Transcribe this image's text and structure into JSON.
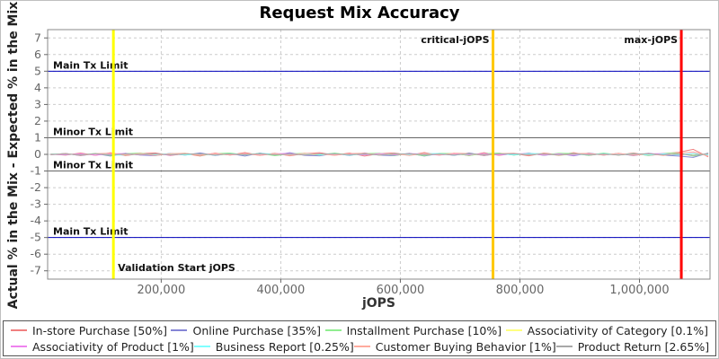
{
  "chart": {
    "title": "Request Mix Accuracy",
    "xlabel": "jOPS",
    "ylabel": "Actual % in the Mix - Expected % in the Mix"
  },
  "chart_data": {
    "type": "line",
    "title": "Request Mix Accuracy",
    "xlabel": "jOPS",
    "ylabel": "Actual % in the Mix - Expected % in the Mix",
    "xlim": [
      10000,
      1118000
    ],
    "ylim": [
      -7.5,
      7.5
    ],
    "x_ticks": [
      200000,
      400000,
      600000,
      800000,
      1000000
    ],
    "x_tick_labels": [
      "200,000",
      "400,000",
      "600,000",
      "800,000",
      "1,000,000"
    ],
    "y_ticks": [
      -7,
      -6,
      -5,
      -4,
      -3,
      -2,
      -1,
      0,
      1,
      2,
      3,
      4,
      5,
      6,
      7
    ],
    "grid": "dashed",
    "grid_color": "#cccccc",
    "legend_position": "bottom",
    "h_markers": [
      {
        "label": "Main Tx Limit",
        "y": 5,
        "color": "#0000bb"
      },
      {
        "label": "Minor Tx Limit",
        "y": 1,
        "color": "#666666"
      },
      {
        "label": "Minor Tx Limit",
        "y": -1,
        "color": "#666666"
      },
      {
        "label": "Main Tx Limit",
        "y": -5,
        "color": "#0000bb"
      }
    ],
    "v_markers": [
      {
        "label": "Validation Start jOPS",
        "x": 120000,
        "color": "#ffff00",
        "label_pos": "bottom-right"
      },
      {
        "label": "critical-jOPS",
        "x": 755000,
        "color": "#ffc800",
        "label_pos": "top-left"
      },
      {
        "label": "max-jOPS",
        "x": 1070000,
        "color": "#ff0000",
        "label_pos": "top-left"
      }
    ],
    "x": [
      15000,
      40000,
      65000,
      90000,
      115000,
      140000,
      165000,
      190000,
      215000,
      240000,
      265000,
      290000,
      315000,
      340000,
      365000,
      390000,
      415000,
      440000,
      465000,
      490000,
      515000,
      540000,
      565000,
      590000,
      615000,
      640000,
      665000,
      690000,
      715000,
      740000,
      765000,
      790000,
      815000,
      840000,
      865000,
      890000,
      915000,
      940000,
      965000,
      990000,
      1015000,
      1040000,
      1065000,
      1090000,
      1115000
    ],
    "series": [
      {
        "name": "In-store Purchase [50%]",
        "color": "#f08080",
        "values": [
          0.02,
          -0.05,
          0.08,
          -0.06,
          0.1,
          -0.08,
          0.05,
          0.09,
          -0.07,
          0.04,
          -0.1,
          0.08,
          -0.04,
          0.11,
          -0.06,
          0.07,
          -0.09,
          0.05,
          0.1,
          -0.05,
          0.08,
          -0.1,
          0.04,
          0.09,
          -0.06,
          0.11,
          -0.04,
          0.07,
          -0.08,
          0.1,
          -0.06,
          0.05,
          -0.09,
          0.08,
          -0.03,
          0.1,
          -0.07,
          0.06,
          -0.05,
          0.09,
          -0.08,
          0.04,
          0.12,
          0.3,
          -0.15
        ]
      },
      {
        "name": "Online Purchase [35%]",
        "color": "#8585d6",
        "values": [
          -0.03,
          0.06,
          -0.08,
          0.05,
          -0.1,
          0.07,
          -0.04,
          -0.08,
          0.06,
          -0.05,
          0.09,
          -0.07,
          0.05,
          -0.1,
          0.08,
          -0.05,
          0.1,
          -0.06,
          -0.09,
          0.06,
          -0.07,
          0.09,
          -0.05,
          -0.08,
          0.07,
          -0.1,
          0.05,
          -0.06,
          0.09,
          -0.08,
          0.07,
          -0.04,
          0.08,
          -0.06,
          0.05,
          -0.09,
          0.08,
          -0.05,
          0.06,
          -0.08,
          0.07,
          -0.05,
          -0.1,
          -0.18,
          0.08
        ]
      },
      {
        "name": "Installment Purchase [10%]",
        "color": "#90ee90",
        "values": [
          0.01,
          0.04,
          -0.05,
          0.06,
          -0.07,
          0.04,
          0.08,
          -0.05,
          0.03,
          0.07,
          -0.06,
          0.04,
          0.08,
          -0.04,
          0.06,
          -0.08,
          0.03,
          0.07,
          -0.05,
          0.08,
          -0.04,
          0.05,
          0.07,
          -0.06,
          0.04,
          -0.08,
          0.06,
          0.05,
          -0.07,
          0.04,
          0.08,
          -0.05,
          0.06,
          -0.04,
          0.07,
          0.05,
          -0.06,
          0.08,
          -0.04,
          0.05,
          -0.07,
          0.06,
          0.08,
          -0.1,
          0.05
        ]
      },
      {
        "name": "Associativity of Category [0.1%]",
        "color": "#ffff80",
        "values": [
          0.0,
          0.01,
          -0.01,
          0.02,
          -0.02,
          0.01,
          0.0,
          -0.01,
          0.02,
          -0.01,
          0.01,
          0.0,
          -0.02,
          0.01,
          0.02,
          -0.01,
          0.0,
          0.01,
          -0.02,
          0.02,
          -0.01,
          0.0,
          0.01,
          -0.01,
          0.02,
          0.0,
          -0.01,
          0.01,
          -0.02,
          0.01,
          0.0,
          0.02,
          -0.01,
          0.01,
          -0.02,
          0.0,
          0.01,
          -0.01,
          0.02,
          -0.01,
          0.0,
          0.01,
          -0.02,
          0.02,
          -0.01
        ]
      },
      {
        "name": "Associativity of Product [1%]",
        "color": "#ee82ee",
        "values": [
          0.0,
          -0.03,
          0.04,
          -0.05,
          0.03,
          0.05,
          -0.04,
          0.03,
          -0.05,
          0.04,
          -0.03,
          0.05,
          -0.04,
          0.03,
          -0.05,
          0.04,
          0.05,
          -0.03,
          0.04,
          -0.05,
          0.03,
          -0.04,
          0.05,
          -0.03,
          0.04,
          0.03,
          -0.05,
          0.04,
          -0.03,
          0.05,
          -0.04,
          0.03,
          0.05,
          -0.04,
          0.03,
          -0.05,
          0.04,
          -0.03,
          0.05,
          -0.04,
          0.03,
          0.05,
          -0.04,
          0.06,
          -0.05
        ]
      },
      {
        "name": "Business Report [0.25%]",
        "color": "#80ffff",
        "values": [
          0.01,
          0.03,
          -0.04,
          0.04,
          -0.03,
          -0.05,
          0.04,
          -0.03,
          0.05,
          -0.04,
          0.03,
          -0.05,
          0.04,
          -0.03,
          0.05,
          0.03,
          -0.04,
          0.05,
          -0.03,
          0.04,
          -0.05,
          0.03,
          -0.04,
          0.05,
          -0.03,
          0.04,
          0.05,
          -0.04,
          0.03,
          -0.05,
          0.04,
          -0.03,
          0.05,
          0.04,
          -0.05,
          0.03,
          -0.04,
          0.05,
          -0.03,
          0.04,
          -0.05,
          0.03,
          -0.04,
          0.05,
          -0.03
        ]
      },
      {
        "name": "Customer Buying Behavior [1%]",
        "color": "#ffab9e",
        "values": [
          -0.02,
          0.05,
          -0.06,
          0.04,
          0.07,
          -0.05,
          0.06,
          -0.07,
          0.04,
          0.06,
          -0.05,
          0.07,
          -0.04,
          0.06,
          -0.07,
          0.05,
          -0.06,
          0.07,
          0.04,
          -0.06,
          0.05,
          0.07,
          -0.05,
          0.04,
          -0.07,
          0.06,
          -0.04,
          0.07,
          0.05,
          -0.06,
          0.04,
          0.07,
          -0.05,
          0.06,
          -0.07,
          0.04,
          0.06,
          -0.05,
          0.07,
          -0.06,
          0.05,
          -0.07,
          0.06,
          0.15,
          -0.1
        ]
      },
      {
        "name": "Product Return [2.65%]",
        "color": "#a8a8a8",
        "values": [
          0.0,
          0.02,
          -0.03,
          0.04,
          -0.04,
          0.03,
          -0.02,
          0.04,
          -0.03,
          0.02,
          0.04,
          -0.04,
          0.03,
          -0.02,
          0.04,
          -0.03,
          0.02,
          -0.04,
          0.03,
          0.04,
          -0.02,
          0.03,
          -0.04,
          0.02,
          0.04,
          -0.03,
          0.02,
          -0.04,
          0.04,
          -0.03,
          0.02,
          0.04,
          -0.02,
          0.03,
          -0.04,
          0.04,
          -0.03,
          0.02,
          -0.04,
          0.03,
          0.04,
          -0.03,
          0.02,
          -0.06,
          0.04
        ]
      }
    ],
    "legend_rows": [
      [
        0,
        1,
        2,
        3
      ],
      [
        4,
        5,
        6,
        7
      ]
    ]
  }
}
